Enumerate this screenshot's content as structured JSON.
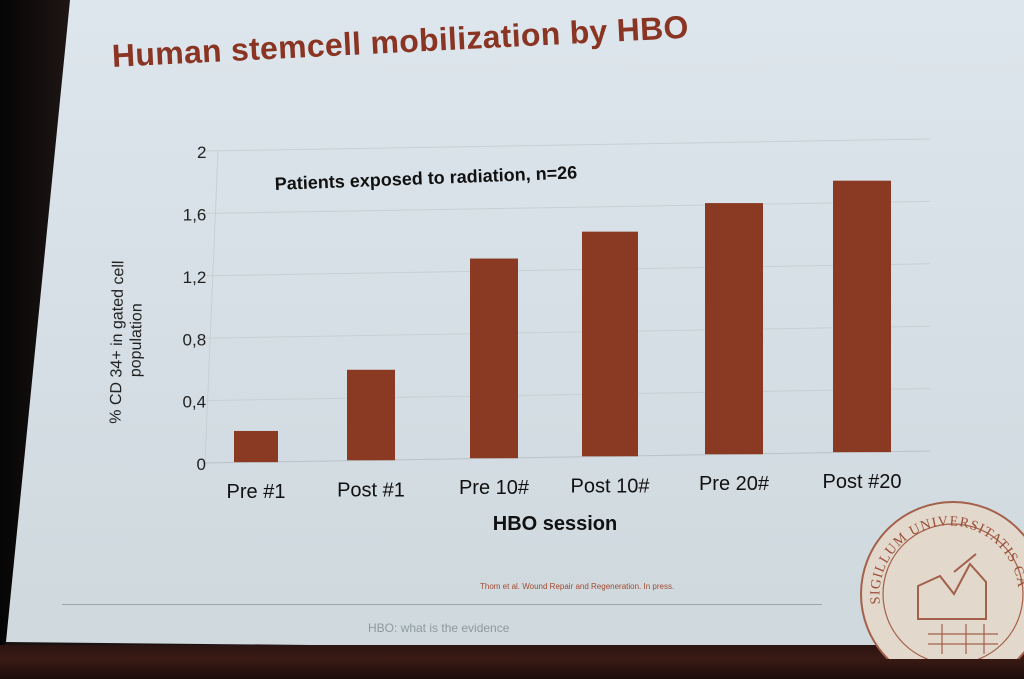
{
  "slide": {
    "title": "Human stemcell mobilization by HBO",
    "citation": "Thom et al. Wound Repair and Regeneration. In press.",
    "footer": "HBO: what is the evidence",
    "seal_text": "SIGILLUM UNIVERSITATIS CAROLINAE AD VTRVMQVE",
    "colors": {
      "title": "#8a3524",
      "bar": "#8a3a22",
      "background": "#d9e2e7"
    }
  },
  "chart_data": {
    "type": "bar",
    "title": "Patients exposed to radiation, n=26",
    "xlabel": "HBO session",
    "ylabel": "% CD 34+ in gated cell population",
    "categories": [
      "Pre  #1",
      "Post #1",
      "Pre 10#",
      "Post 10#",
      "Pre 20#",
      "Post #20"
    ],
    "values": [
      0.2,
      0.58,
      1.28,
      1.44,
      1.61,
      1.74
    ],
    "ylim": [
      0,
      2
    ],
    "yticks": [
      0,
      0.4,
      0.8,
      1.2,
      1.6,
      2
    ],
    "ytick_labels": [
      "0",
      "0,4",
      "0,8",
      "1,2",
      "1,6",
      "2"
    ],
    "grid": true,
    "legend": "none"
  }
}
